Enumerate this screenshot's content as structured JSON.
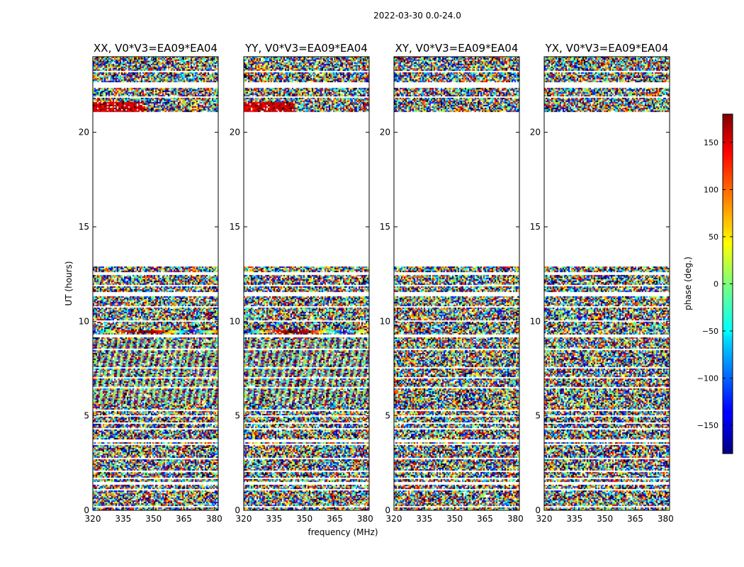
{
  "suptitle": "2022-03-30 0.0-24.0",
  "chart_data": {
    "type": "heatmap",
    "title": "2022-03-30 0.0-24.0",
    "xlabel": "frequency (MHz)",
    "ylabel": "UT (hours)",
    "xlim": [
      320,
      382
    ],
    "ylim": [
      0,
      24
    ],
    "x_ticks": [
      320,
      335,
      350,
      365,
      380
    ],
    "y_ticks": [
      0,
      5,
      10,
      15,
      20
    ],
    "colorbar": {
      "label": "phase (deg.)",
      "range": [
        -180,
        180
      ],
      "ticks": [
        -150,
        -100,
        -50,
        0,
        50,
        100,
        150
      ],
      "tick_labels": [
        "−150",
        "−100",
        "−50",
        "0",
        "50",
        "100",
        "150"
      ],
      "colormap": "jet"
    },
    "panels": [
      {
        "title": "XX, V0*V3=EA09*EA04",
        "pol": "XX"
      },
      {
        "title": "YY, V0*V3=EA09*EA04",
        "pol": "YY"
      },
      {
        "title": "XY, V0*V3=EA09*EA04",
        "pol": "XY"
      },
      {
        "title": "YX, V0*V3=EA09*EA04",
        "pol": "YX"
      }
    ],
    "data_coverage_hours": [
      [
        0.0,
        12.9
      ],
      [
        21.1,
        24.0
      ]
    ],
    "flagged_gap_hours": [
      [
        0.18,
        0.22
      ],
      [
        0.58,
        0.62
      ],
      [
        1.05,
        1.15
      ],
      [
        1.38,
        1.48
      ],
      [
        1.68,
        1.75
      ],
      [
        2.02,
        2.12
      ],
      [
        2.38,
        2.42
      ],
      [
        2.72,
        2.78
      ],
      [
        3.48,
        3.55
      ],
      [
        3.62,
        3.72
      ],
      [
        4.28,
        4.32
      ],
      [
        4.58,
        4.62
      ],
      [
        4.98,
        5.05
      ],
      [
        5.22,
        5.32
      ],
      [
        5.52,
        5.58
      ],
      [
        6.48,
        6.52
      ],
      [
        6.98,
        7.02
      ],
      [
        7.52,
        7.58
      ],
      [
        8.48,
        8.55
      ],
      [
        9.18,
        9.32
      ],
      [
        9.58,
        9.62
      ],
      [
        9.98,
        10.02
      ],
      [
        10.72,
        10.82
      ],
      [
        11.32,
        11.55
      ],
      [
        11.88,
        11.92
      ],
      [
        12.48,
        12.62
      ],
      [
        21.82,
        21.88
      ],
      [
        22.02,
        22.08
      ],
      [
        22.38,
        22.62
      ],
      [
        23.18,
        23.22
      ]
    ]
  }
}
